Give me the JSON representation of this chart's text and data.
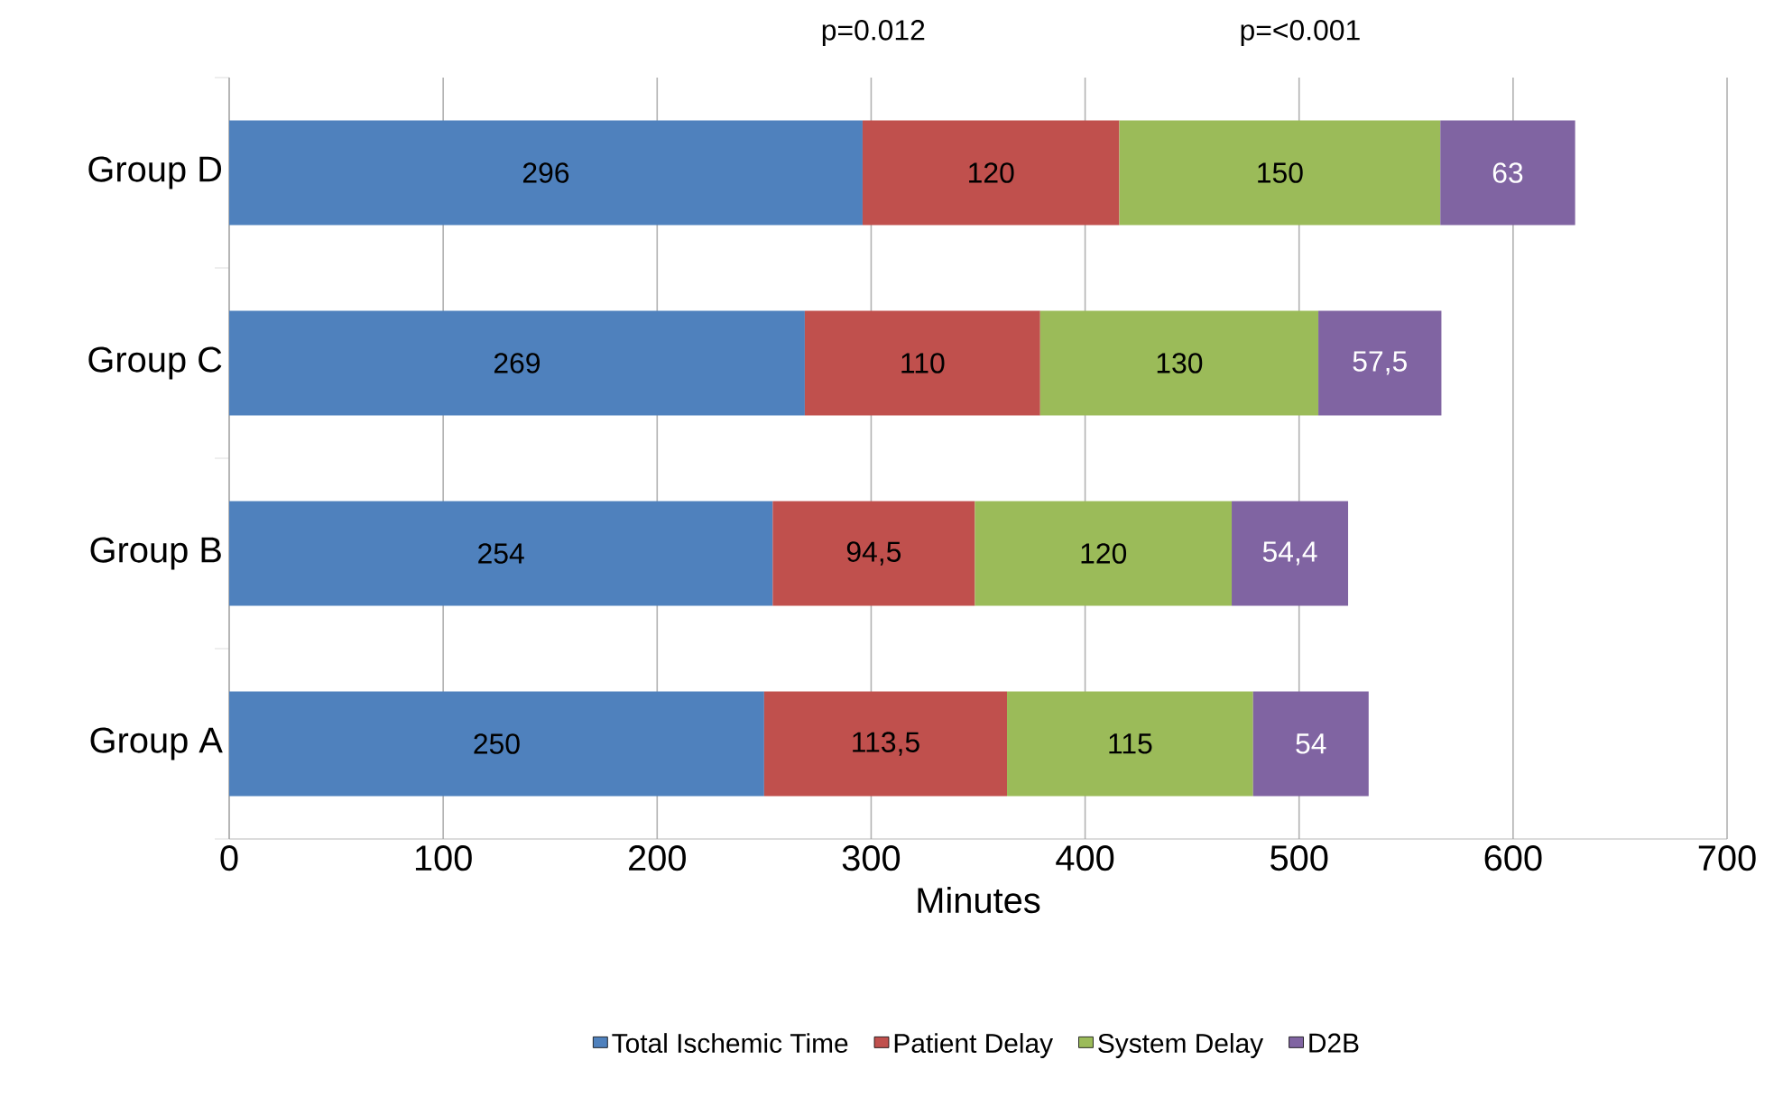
{
  "chart_data": {
    "type": "bar",
    "orientation": "horizontal",
    "stacked": true,
    "categories": [
      "Group D",
      "Group C",
      "Group B",
      "Group A"
    ],
    "series": [
      {
        "name": "Total Ischemic Time",
        "color": "#4f81bd",
        "values": [
          296,
          269,
          254,
          250
        ],
        "value_labels": [
          "296",
          "269",
          "254",
          "250"
        ]
      },
      {
        "name": "Patient Delay",
        "color": "#c0504d",
        "values": [
          120,
          110,
          94.5,
          113.5
        ],
        "value_labels": [
          "120",
          "110",
          "94,5",
          "113,5"
        ]
      },
      {
        "name": "System Delay",
        "color": "#9bbb59",
        "values": [
          150,
          130,
          120,
          115
        ],
        "value_labels": [
          "150",
          "130",
          "120",
          "115"
        ]
      },
      {
        "name": "D2B",
        "color": "#8064a2",
        "values": [
          63,
          57.5,
          54.4,
          54
        ],
        "value_labels": [
          "63",
          "57,5",
          "54,4",
          "54"
        ]
      }
    ],
    "xlabel": "Minutes",
    "xlim": [
      0,
      700
    ],
    "xticks": [
      0,
      100,
      200,
      300,
      400,
      500,
      600,
      700
    ],
    "grid": "x",
    "legend": "bottom",
    "annotations": [
      "p=0.012",
      "p=<0.001"
    ]
  }
}
